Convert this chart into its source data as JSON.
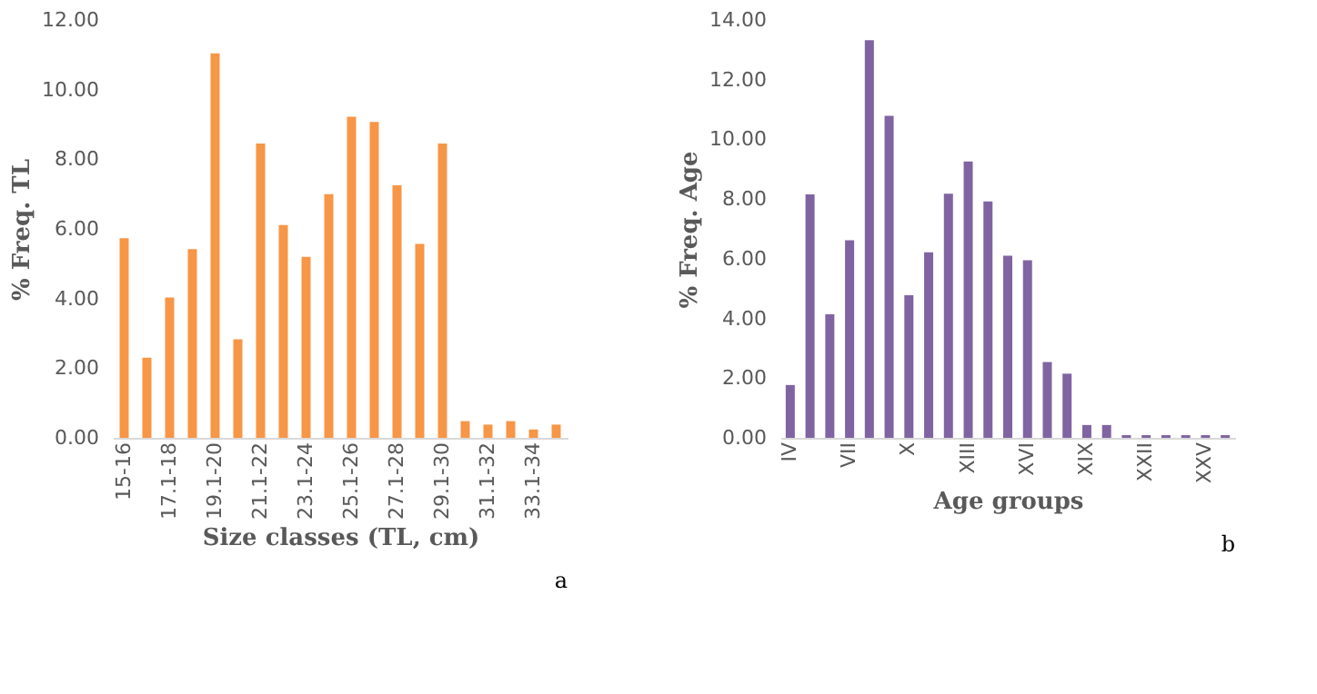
{
  "chart_data": [
    {
      "type": "bar",
      "xlabel": "Size classes (TL, cm)",
      "ylabel": "% Freq. TL",
      "categories": [
        "15-16",
        null,
        "17.1-18",
        null,
        "19.1-20",
        null,
        "21.1-22",
        null,
        "23.1-24",
        null,
        "25.1-26",
        null,
        "27.1-28",
        null,
        "29.1-30",
        null,
        "31.1-32",
        null,
        "33.1-34",
        null
      ],
      "values": [
        5.73,
        2.3,
        4.03,
        5.42,
        11.04,
        2.83,
        8.45,
        6.11,
        5.2,
        7.0,
        9.22,
        9.07,
        7.25,
        5.57,
        8.45,
        0.48,
        0.38,
        0.48,
        0.24,
        0.38
      ],
      "color": "#f79646",
      "ylim": [
        0,
        12
      ],
      "yticks": [
        {
          "value": 0,
          "label": "0.00"
        },
        {
          "value": 2,
          "label": "2.00"
        },
        {
          "value": 4,
          "label": "4.00"
        },
        {
          "value": 6,
          "label": "6.00"
        },
        {
          "value": 8,
          "label": "8.00"
        },
        {
          "value": 10,
          "label": "10.00"
        },
        {
          "value": 12,
          "label": "12.00"
        }
      ],
      "grid": false,
      "annotations": [
        "a"
      ]
    },
    {
      "type": "bar",
      "xlabel": "Age groups",
      "ylabel": "% Freq. Age",
      "categories": [
        "IV",
        null,
        null,
        "VII",
        null,
        null,
        "X",
        null,
        null,
        "XIII",
        null,
        null,
        "XVI",
        null,
        null,
        "XIX",
        null,
        null,
        "XXII",
        null,
        null,
        "XXV",
        null
      ],
      "values": [
        1.77,
        8.16,
        4.14,
        6.62,
        13.32,
        10.79,
        4.78,
        6.22,
        8.18,
        9.26,
        7.92,
        6.1,
        5.95,
        2.54,
        2.15,
        0.43,
        0.43,
        0.09,
        0.09,
        0.09,
        0.09,
        0.09,
        0.09
      ],
      "color": "#8064a2",
      "ylim": [
        0,
        14
      ],
      "yticks": [
        {
          "value": 0,
          "label": "0.00"
        },
        {
          "value": 2,
          "label": "2.00"
        },
        {
          "value": 4,
          "label": "4.00"
        },
        {
          "value": 6,
          "label": "6.00"
        },
        {
          "value": 8,
          "label": "8.00"
        },
        {
          "value": 10,
          "label": "10.00"
        },
        {
          "value": 12,
          "label": "12.00"
        },
        {
          "value": 14,
          "label": "14.00"
        }
      ],
      "grid": false,
      "annotations": [
        "b"
      ]
    }
  ]
}
